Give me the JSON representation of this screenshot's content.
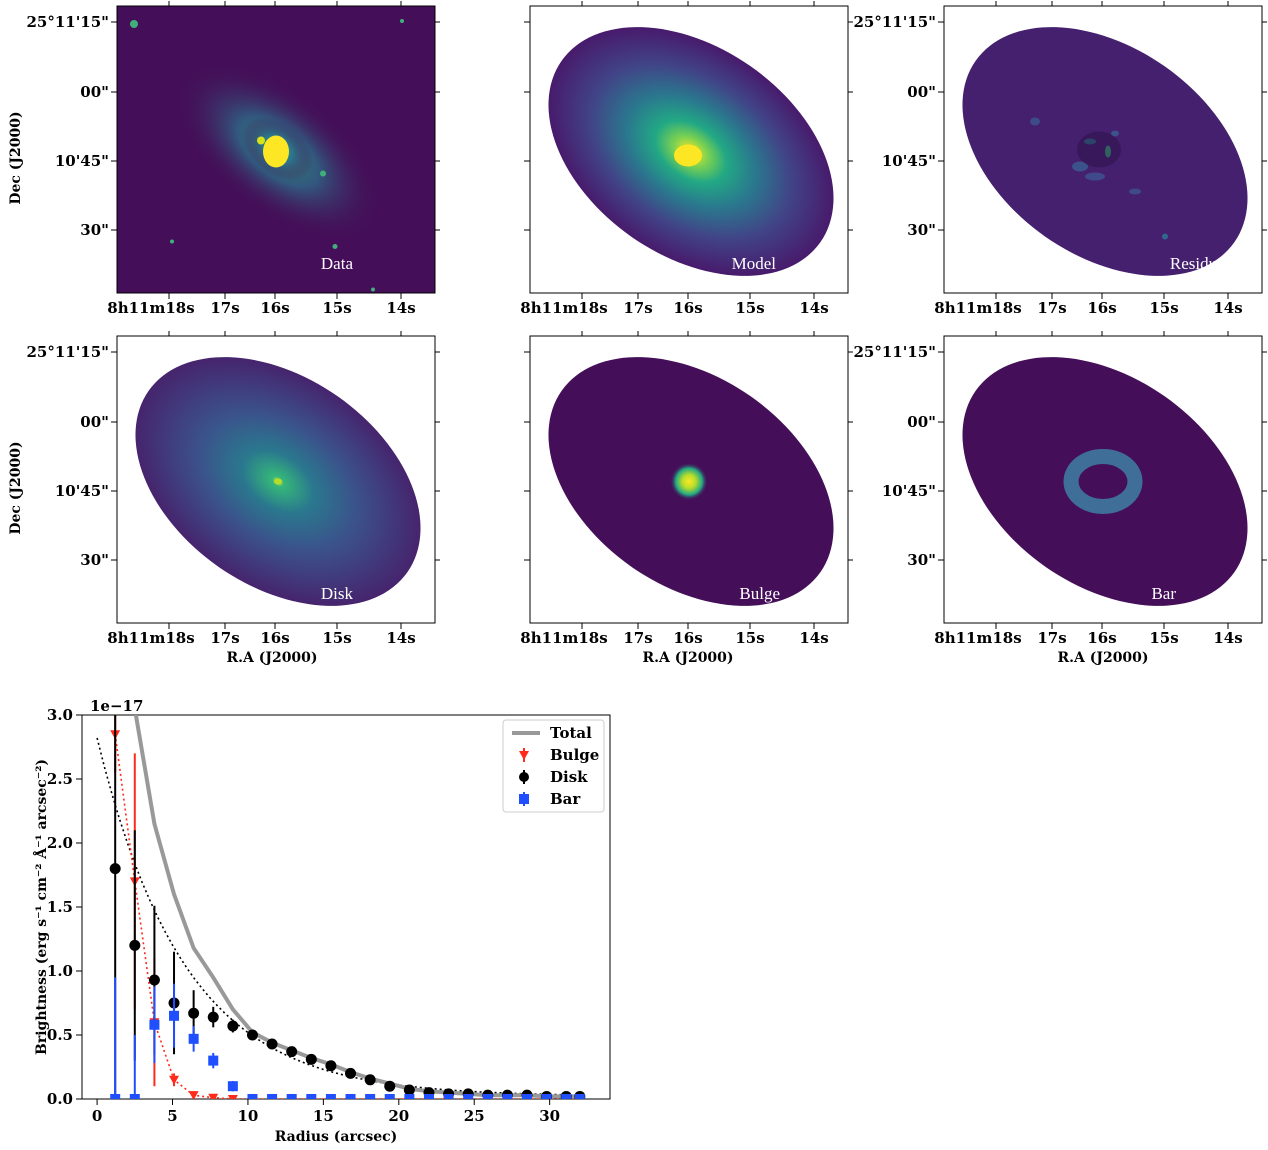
{
  "panels": [
    {
      "label": "Data",
      "kind": "data"
    },
    {
      "label": "Model",
      "kind": "model"
    },
    {
      "label": "Residuals",
      "kind": "residuals"
    },
    {
      "label": "Disk",
      "kind": "disk"
    },
    {
      "label": "Bulge",
      "kind": "bulge"
    },
    {
      "label": "Bar",
      "kind": "bar"
    }
  ],
  "image_axes": {
    "ra_ticks": [
      "8h11m18s",
      "17s",
      "16s",
      "15s",
      "14s"
    ],
    "dec_ticks": [
      "25°11'15\"",
      "00\"",
      "10'45\"",
      "30\""
    ],
    "xlabel": "R.A (J2000)",
    "ylabel": "Dec (J2000)"
  },
  "colors": {
    "background": "#440f58",
    "total": "#999999",
    "bulge": "#ff2a1a",
    "disk": "#000000",
    "bar": "#1f4fff"
  },
  "chart_data": {
    "type": "scatter",
    "xlabel": "Radius (arcsec)",
    "ylabel": "Brightness (erg s⁻¹ cm⁻² Å⁻¹ arcsec⁻²)",
    "offset_label": "1e−17",
    "xlim": [
      -1,
      34
    ],
    "ylim": [
      0,
      3.0
    ],
    "xticks": [
      0,
      5,
      10,
      15,
      20,
      25,
      30
    ],
    "yticks": [
      0.0,
      0.5,
      1.0,
      1.5,
      2.0,
      2.5,
      3.0
    ],
    "legend_position": "top-right",
    "series": [
      {
        "name": "Total",
        "style": "line",
        "x": [
          2.5,
          3.8,
          5.1,
          6.4,
          7.7,
          9.0,
          10.3,
          11.6,
          12.9,
          14.2,
          15.5,
          16.8,
          18.1,
          19.4,
          20.7,
          22.0,
          23.3,
          24.6,
          25.9,
          27.2,
          28.5,
          29.8,
          31.1,
          32.0
        ],
        "y": [
          3.05,
          2.15,
          1.6,
          1.18,
          0.95,
          0.7,
          0.52,
          0.44,
          0.38,
          0.32,
          0.27,
          0.21,
          0.16,
          0.12,
          0.08,
          0.06,
          0.05,
          0.04,
          0.03,
          0.03,
          0.03,
          0.02,
          0.02,
          0.02
        ]
      },
      {
        "name": "Bulge",
        "style": "triangle-down",
        "x": [
          1.2,
          2.5,
          3.8,
          5.1,
          6.4,
          7.7,
          9.0,
          10.3,
          11.6,
          12.9,
          14.2,
          15.5,
          16.8,
          18.1,
          19.4,
          20.7,
          22.0,
          23.3,
          24.6,
          25.9,
          27.2,
          28.5,
          29.8,
          31.1,
          32.0
        ],
        "y": [
          2.85,
          1.7,
          0.6,
          0.15,
          0.03,
          0.01,
          0.0,
          0.0,
          0.0,
          0.0,
          0.0,
          0.0,
          0.0,
          0.0,
          0.0,
          0.0,
          0.0,
          0.0,
          0.0,
          0.0,
          0.0,
          0.0,
          0.0,
          0.0,
          0.0
        ],
        "yerr": [
          0.3,
          1.0,
          0.5,
          0.05,
          0.03,
          0.01,
          0,
          0,
          0,
          0,
          0,
          0,
          0,
          0,
          0,
          0,
          0,
          0,
          0,
          0,
          0,
          0,
          0,
          0,
          0
        ]
      },
      {
        "name": "Disk",
        "style": "circle",
        "x": [
          1.2,
          2.5,
          3.8,
          5.1,
          6.4,
          7.7,
          9.0,
          10.3,
          11.6,
          12.9,
          14.2,
          15.5,
          16.8,
          18.1,
          19.4,
          20.7,
          22.0,
          23.3,
          24.6,
          25.9,
          27.2,
          28.5,
          29.8,
          31.1,
          32.0
        ],
        "y": [
          1.8,
          1.2,
          0.93,
          0.75,
          0.67,
          0.64,
          0.57,
          0.5,
          0.43,
          0.37,
          0.31,
          0.26,
          0.2,
          0.15,
          0.1,
          0.07,
          0.05,
          0.04,
          0.04,
          0.03,
          0.03,
          0.03,
          0.02,
          0.02,
          0.02
        ],
        "yerr": [
          1.8,
          0.9,
          0.58,
          0.4,
          0.18,
          0.08,
          0.05,
          0.03,
          0.02,
          0.02,
          0.02,
          0.02,
          0.02,
          0.01,
          0.01,
          0.01,
          0.01,
          0.01,
          0.01,
          0.01,
          0.01,
          0.01,
          0.01,
          0.01,
          0.01
        ]
      },
      {
        "name": "Bar",
        "style": "square",
        "x": [
          1.2,
          2.5,
          3.8,
          5.1,
          6.4,
          7.7,
          9.0,
          10.3,
          11.6,
          12.9,
          14.2,
          15.5,
          16.8,
          18.1,
          19.4,
          20.7,
          22.0,
          23.3,
          24.6,
          25.9,
          27.2,
          28.5,
          29.8,
          31.1,
          32.0
        ],
        "y": [
          0.0,
          0.0,
          0.58,
          0.65,
          0.47,
          0.3,
          0.1,
          0.0,
          0.0,
          0.0,
          0.0,
          0.0,
          0.0,
          0.0,
          0.0,
          0.0,
          0.0,
          0.0,
          0.0,
          0.0,
          0.0,
          0.0,
          0.0,
          0.0,
          0.0
        ],
        "yerr": [
          0.95,
          0.5,
          0.3,
          0.25,
          0.1,
          0.06,
          0.04,
          0,
          0,
          0,
          0,
          0,
          0,
          0,
          0,
          0,
          0,
          0,
          0,
          0,
          0,
          0,
          0,
          0,
          0
        ]
      }
    ]
  }
}
